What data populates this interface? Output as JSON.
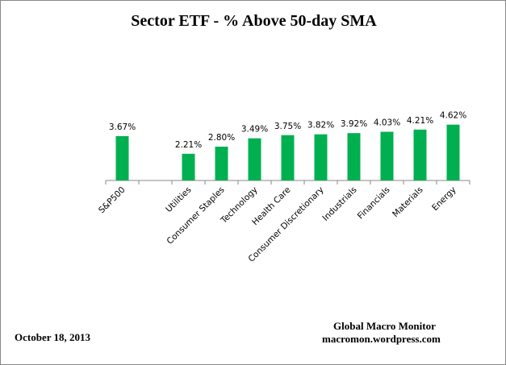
{
  "chart_data": {
    "type": "bar",
    "title": "Sector ETF - % Above 50-day SMA",
    "categories": [
      "S&P500",
      "",
      "Utilities",
      "Consumer Staples",
      "Technology",
      "Health Care",
      "Consumer Discretionary",
      "Industrials",
      "Financials",
      "Materials",
      "Energy"
    ],
    "values": [
      3.67,
      null,
      2.21,
      2.8,
      3.49,
      3.75,
      3.82,
      3.92,
      4.03,
      4.21,
      4.62
    ],
    "data_labels": [
      "3.67%",
      "",
      "2.21%",
      "2.80%",
      "3.49%",
      "3.75%",
      "3.82%",
      "3.92%",
      "4.03%",
      "4.21%",
      "4.62%"
    ],
    "xlabel": "",
    "ylabel": "",
    "ylim": [
      0,
      4.62
    ],
    "grid": false,
    "legend": "none",
    "bar_color": "#00B050"
  },
  "footer": {
    "date": "October 18, 2013",
    "source_name": "Global Macro Monitor",
    "source_url": "macromon.wordpress.com"
  }
}
